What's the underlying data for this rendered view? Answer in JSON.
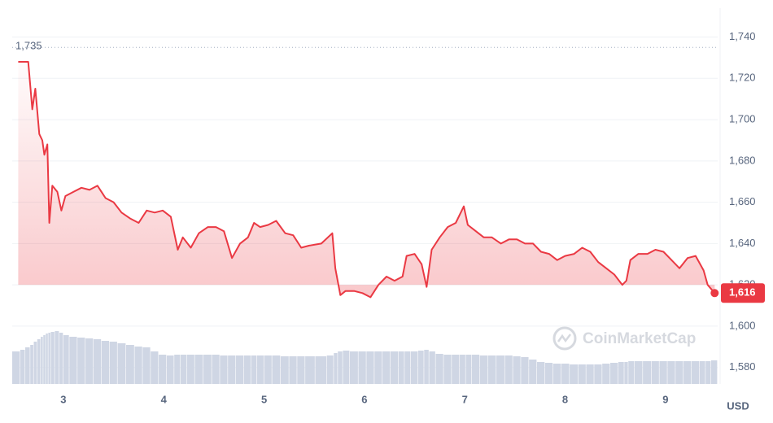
{
  "chart_data": {
    "type": "line",
    "x": [
      2.55,
      2.59,
      2.65,
      2.69,
      2.72,
      2.76,
      2.79,
      2.81,
      2.84,
      2.86,
      2.89,
      2.94,
      2.98,
      3.02,
      3.1,
      3.18,
      3.26,
      3.34,
      3.42,
      3.5,
      3.58,
      3.67,
      3.75,
      3.83,
      3.91,
      3.99,
      4.07,
      4.14,
      4.19,
      4.27,
      4.35,
      4.44,
      4.52,
      4.6,
      4.68,
      4.76,
      4.84,
      4.9,
      4.96,
      5.04,
      5.12,
      5.21,
      5.29,
      5.37,
      5.45,
      5.57,
      5.68,
      5.71,
      5.76,
      5.81,
      5.9,
      5.98,
      6.06,
      6.14,
      6.22,
      6.3,
      6.38,
      6.42,
      6.5,
      6.57,
      6.62,
      6.67,
      6.75,
      6.83,
      6.91,
      6.99,
      7.03,
      7.11,
      7.19,
      7.27,
      7.36,
      7.44,
      7.52,
      7.6,
      7.68,
      7.76,
      7.84,
      7.92,
      8.0,
      8.09,
      8.17,
      8.25,
      8.33,
      8.41,
      8.49,
      8.57,
      8.61,
      8.65,
      8.73,
      8.82,
      8.9,
      8.98,
      9.06,
      9.14,
      9.22,
      9.3,
      9.38,
      9.42,
      9.49
    ],
    "series": [
      {
        "name": "price",
        "color": "#ea3943",
        "values": [
          1728,
          1728,
          1728,
          1705,
          1715,
          1693,
          1690,
          1683,
          1688,
          1650,
          1668,
          1665,
          1656,
          1663,
          1665,
          1667,
          1666,
          1668,
          1662,
          1660,
          1655,
          1652,
          1650,
          1656,
          1655,
          1656,
          1653,
          1637,
          1643,
          1638,
          1645,
          1648,
          1648,
          1646,
          1633,
          1640,
          1643,
          1650,
          1648,
          1649,
          1651,
          1645,
          1644,
          1638,
          1639,
          1640,
          1645,
          1628,
          1615,
          1617,
          1617,
          1616,
          1614,
          1620,
          1624,
          1622,
          1624,
          1634,
          1635,
          1630,
          1619,
          1637,
          1643,
          1648,
          1650,
          1658,
          1649,
          1646,
          1643,
          1643,
          1640,
          1642,
          1642,
          1640,
          1640,
          1636,
          1635,
          1632,
          1634,
          1635,
          1638,
          1636,
          1631,
          1628,
          1625,
          1620,
          1622,
          1632,
          1635,
          1635,
          1637,
          1636,
          1632,
          1628,
          1633,
          1634,
          1627,
          1620,
          1616
        ]
      },
      {
        "name": "volume",
        "color": "#cfd6e4",
        "ylim": [
          0,
          100
        ],
        "values": [
          40,
          42,
          45,
          48,
          52,
          55,
          58,
          60,
          62,
          63,
          64,
          65,
          63,
          60,
          58,
          57,
          56,
          55,
          53,
          52,
          50,
          48,
          46,
          45,
          40,
          36,
          35,
          36,
          36,
          36,
          36,
          36,
          36,
          35,
          35,
          35,
          35,
          35,
          35,
          35,
          35,
          34,
          34,
          34,
          34,
          34,
          35,
          38,
          40,
          41,
          40,
          40,
          40,
          40,
          40,
          40,
          40,
          40,
          40,
          41,
          42,
          40,
          37,
          36,
          36,
          36,
          36,
          36,
          35,
          35,
          35,
          35,
          34,
          33,
          30,
          27,
          26,
          25,
          25,
          24,
          24,
          24,
          24,
          25,
          26,
          27,
          27,
          28,
          28,
          28,
          28,
          28,
          28,
          28,
          28,
          28,
          28,
          28,
          29
        ]
      }
    ],
    "xlim": [
      2.49,
      9.52
    ],
    "xticks": [
      3,
      4,
      5,
      6,
      7,
      8,
      9
    ],
    "ylim": [
      1572,
      1754
    ],
    "yticks": [
      {
        "value": 1580,
        "label": "1,580"
      },
      {
        "value": 1600,
        "label": "1,600"
      },
      {
        "value": 1620,
        "label": "1,620"
      },
      {
        "value": 1640,
        "label": "1,640"
      },
      {
        "value": 1660,
        "label": "1,660"
      },
      {
        "value": 1680,
        "label": "1,680"
      },
      {
        "value": 1700,
        "label": "1,700"
      },
      {
        "value": 1720,
        "label": "1,720"
      },
      {
        "value": 1740,
        "label": "1,740"
      }
    ],
    "high": {
      "value": 1735,
      "label": "1,735"
    },
    "last": {
      "value": 1616,
      "label": "1,616"
    },
    "y_label": "USD",
    "watermark": "CoinMarketCap",
    "grid": true
  }
}
